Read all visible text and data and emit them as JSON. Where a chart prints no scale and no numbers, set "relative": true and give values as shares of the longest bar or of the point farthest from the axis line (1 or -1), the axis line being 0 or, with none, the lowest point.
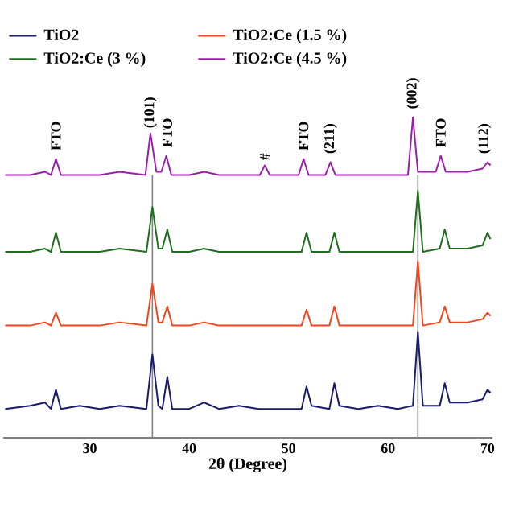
{
  "chart_data": {
    "type": "line",
    "relative": true,
    "xlabel": "2θ (Degree)",
    "legend": "top",
    "xlim": [
      21.3,
      70.5
    ],
    "xticks": [
      30,
      40,
      50,
      60,
      70
    ],
    "x": [
      21.5,
      24,
      25.5,
      26.1,
      26.6,
      27.1,
      29,
      31,
      33,
      35.7,
      36.3,
      36.9,
      37.3,
      37.8,
      38.3,
      40,
      41.5,
      43,
      45,
      47,
      49,
      51.3,
      51.8,
      52.3,
      54.1,
      54.6,
      55.1,
      57,
      59,
      61,
      62.5,
      63.0,
      63.5,
      65.2,
      65.7,
      66.2,
      68,
      69.5,
      70,
      70.3
    ],
    "series": [
      {
        "name": "TiO2",
        "color": "#1a1a6e",
        "values": [
          0.09,
          0.1,
          0.11,
          0.09,
          0.15,
          0.09,
          0.1,
          0.09,
          0.1,
          0.09,
          0.26,
          0.1,
          0.09,
          0.19,
          0.09,
          0.09,
          0.11,
          0.09,
          0.1,
          0.09,
          0.09,
          0.09,
          0.16,
          0.1,
          0.09,
          0.17,
          0.1,
          0.09,
          0.1,
          0.09,
          0.1,
          0.33,
          0.1,
          0.1,
          0.17,
          0.11,
          0.11,
          0.12,
          0.15,
          0.14
        ]
      },
      {
        "name": "TiO2:Ce (1.5 %)",
        "color": "#f0461e",
        "values": [
          0.35,
          0.35,
          0.36,
          0.35,
          0.39,
          0.35,
          0.35,
          0.35,
          0.36,
          0.35,
          0.48,
          0.36,
          0.36,
          0.41,
          0.35,
          0.35,
          0.36,
          0.35,
          0.35,
          0.35,
          0.35,
          0.35,
          0.4,
          0.35,
          0.35,
          0.41,
          0.35,
          0.35,
          0.35,
          0.35,
          0.35,
          0.55,
          0.35,
          0.36,
          0.41,
          0.36,
          0.36,
          0.37,
          0.39,
          0.38
        ]
      },
      {
        "name": "TiO2:Ce (3 %)",
        "color": "#1f6e1f",
        "values": [
          0.58,
          0.58,
          0.59,
          0.58,
          0.64,
          0.58,
          0.58,
          0.58,
          0.59,
          0.58,
          0.72,
          0.59,
          0.59,
          0.65,
          0.58,
          0.58,
          0.59,
          0.58,
          0.58,
          0.58,
          0.58,
          0.58,
          0.64,
          0.58,
          0.58,
          0.64,
          0.58,
          0.58,
          0.58,
          0.58,
          0.58,
          0.77,
          0.58,
          0.59,
          0.65,
          0.59,
          0.59,
          0.6,
          0.64,
          0.62
        ]
      },
      {
        "name": "TiO2:Ce (4.5 %)",
        "color": "#9b1fa8",
        "x": [
          21.5,
          24,
          25.5,
          26.1,
          26.6,
          27.1,
          29,
          31,
          33,
          35.6,
          36.1,
          36.7,
          37.2,
          37.7,
          38.2,
          40,
          41.5,
          43,
          45,
          47.1,
          47.6,
          48.1,
          51.0,
          51.5,
          52.0,
          53.7,
          54.2,
          54.7,
          57,
          59,
          62.0,
          62.5,
          63.0,
          64.8,
          65.3,
          65.8,
          68,
          69.5,
          70,
          70.3
        ],
        "values": [
          0.82,
          0.82,
          0.83,
          0.82,
          0.87,
          0.82,
          0.82,
          0.82,
          0.83,
          0.82,
          0.95,
          0.83,
          0.83,
          0.88,
          0.82,
          0.82,
          0.83,
          0.82,
          0.82,
          0.82,
          0.85,
          0.82,
          0.82,
          0.87,
          0.82,
          0.82,
          0.86,
          0.82,
          0.82,
          0.82,
          0.82,
          1.0,
          0.83,
          0.83,
          0.88,
          0.83,
          0.83,
          0.84,
          0.86,
          0.85
        ]
      }
    ],
    "ref_lines": [
      {
        "axis": "x",
        "value": 36.3,
        "color": "#808080"
      },
      {
        "axis": "x",
        "value": 63.0,
        "color": "#808080"
      }
    ],
    "annotations": [
      {
        "text": "FTO",
        "x": 26.6,
        "y": 0.89
      },
      {
        "text": "(101)",
        "x": 36.1,
        "y": 0.96
      },
      {
        "text": "FTO",
        "x": 37.8,
        "y": 0.9
      },
      {
        "text": "#",
        "x": 47.6,
        "y": 0.86
      },
      {
        "text": "FTO",
        "x": 51.5,
        "y": 0.89
      },
      {
        "text": "(211)",
        "x": 54.2,
        "y": 0.88
      },
      {
        "text": "(002)",
        "x": 62.5,
        "y": 1.02
      },
      {
        "text": "FTO",
        "x": 65.3,
        "y": 0.9
      },
      {
        "text": "(112)",
        "x": 69.7,
        "y": 0.88
      }
    ]
  }
}
